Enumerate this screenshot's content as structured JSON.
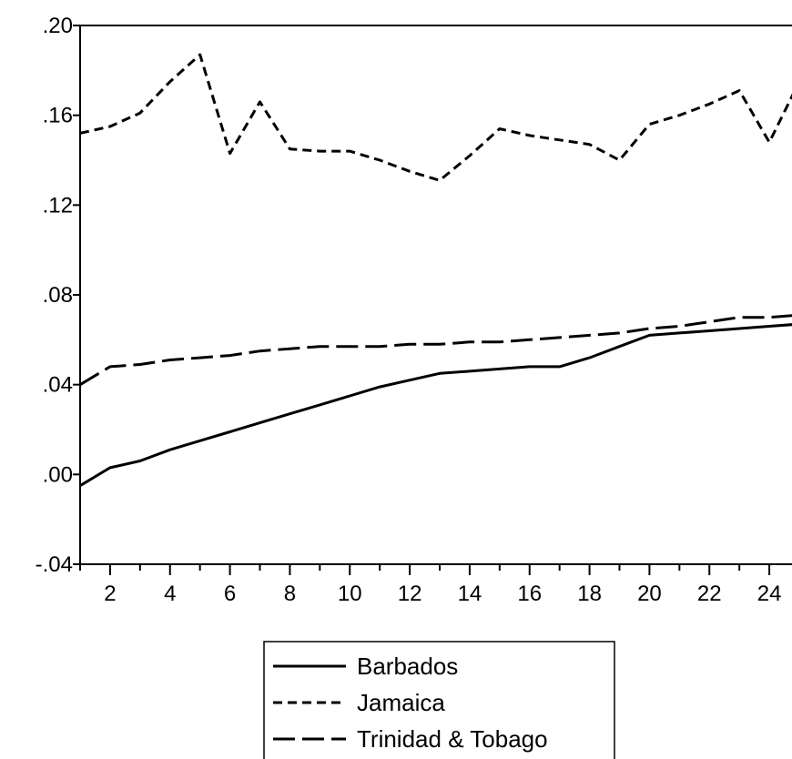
{
  "chart_data": {
    "type": "line",
    "title": "",
    "xlabel": "",
    "ylabel": "",
    "x": [
      1,
      2,
      3,
      4,
      5,
      6,
      7,
      8,
      9,
      10,
      11,
      12,
      13,
      14,
      15,
      16,
      17,
      18,
      19,
      20,
      21,
      22,
      23,
      24,
      25
    ],
    "xlim": [
      1,
      25
    ],
    "ylim": [
      -0.04,
      0.2
    ],
    "x_ticks": [
      2,
      4,
      6,
      8,
      10,
      12,
      14,
      16,
      18,
      20,
      22,
      24
    ],
    "x_tick_labels": [
      "2",
      "4",
      "6",
      "8",
      "10",
      "12",
      "14",
      "16",
      "18",
      "20",
      "22",
      "24"
    ],
    "y_ticks": [
      -0.04,
      0.0,
      0.04,
      0.08,
      0.12,
      0.16,
      0.2
    ],
    "y_tick_labels": [
      "-.04",
      ".00",
      ".04",
      ".08",
      ".12",
      ".16",
      ".20"
    ],
    "grid": false,
    "legend_position": "bottom-center",
    "series": [
      {
        "name": "Barbados",
        "dash": "solid",
        "values": [
          -0.005,
          0.003,
          0.006,
          0.011,
          0.015,
          0.019,
          0.023,
          0.027,
          0.031,
          0.035,
          0.039,
          0.042,
          0.045,
          0.046,
          0.047,
          0.048,
          0.048,
          0.052,
          0.057,
          0.062,
          0.063,
          0.064,
          0.065,
          0.066,
          0.067
        ]
      },
      {
        "name": "Jamaica",
        "dash": "short",
        "values": [
          0.152,
          0.155,
          0.161,
          0.175,
          0.187,
          0.143,
          0.166,
          0.145,
          0.144,
          0.144,
          0.14,
          0.135,
          0.131,
          0.142,
          0.154,
          0.151,
          0.149,
          0.147,
          0.14,
          0.156,
          0.16,
          0.165,
          0.171,
          0.148,
          0.175
        ]
      },
      {
        "name": "Trinidad & Tobago",
        "dash": "long",
        "values": [
          0.04,
          0.048,
          0.049,
          0.051,
          0.052,
          0.053,
          0.055,
          0.056,
          0.057,
          0.057,
          0.057,
          0.058,
          0.058,
          0.059,
          0.059,
          0.06,
          0.061,
          0.062,
          0.063,
          0.065,
          0.066,
          0.068,
          0.07,
          0.07,
          0.071
        ]
      }
    ]
  }
}
